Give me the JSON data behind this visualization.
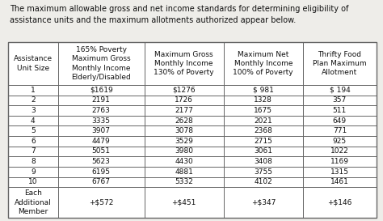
{
  "intro_text": "The maximum allowable gross and net income standards for determining eligibility of\nassistance units and the maximum allotments authorized appear below.",
  "col_headers": [
    "Assistance\nUnit Size",
    "165% Poverty\nMaximum Gross\nMonthly Income\nElderly/Disabled",
    "Maximum Gross\nMonthly Income\n130% of Poverty",
    "Maximum Net\nMonthly Income\n100% of Poverty",
    "Thrifty Food\nPlan Maximum\nAllotment"
  ],
  "rows": [
    [
      "1",
      "$1619",
      "$1276",
      "$ 981",
      "$ 194"
    ],
    [
      "2",
      "2191",
      "1726",
      "1328",
      "357"
    ],
    [
      "3",
      "2763",
      "2177",
      "1675",
      "511"
    ],
    [
      "4",
      "3335",
      "2628",
      "2021",
      "649"
    ],
    [
      "5",
      "3907",
      "3078",
      "2368",
      "771"
    ],
    [
      "6",
      "4479",
      "3529",
      "2715",
      "925"
    ],
    [
      "7",
      "5051",
      "3980",
      "3061",
      "1022"
    ],
    [
      "8",
      "5623",
      "4430",
      "3408",
      "1169"
    ],
    [
      "9",
      "6195",
      "4881",
      "3755",
      "1315"
    ],
    [
      "10",
      "6767",
      "5332",
      "4102",
      "1461"
    ],
    [
      "Each\nAdditional\nMember",
      "+$572",
      "+$451",
      "+$347",
      "+$146"
    ]
  ],
  "bg_color": "#eeede9",
  "table_bg": "#ffffff",
  "border_color": "#666666",
  "text_color": "#111111",
  "font_size": 6.5,
  "header_font_size": 6.5,
  "intro_font_size": 7.0,
  "fig_width": 4.74,
  "fig_height": 2.73,
  "dpi": 100
}
